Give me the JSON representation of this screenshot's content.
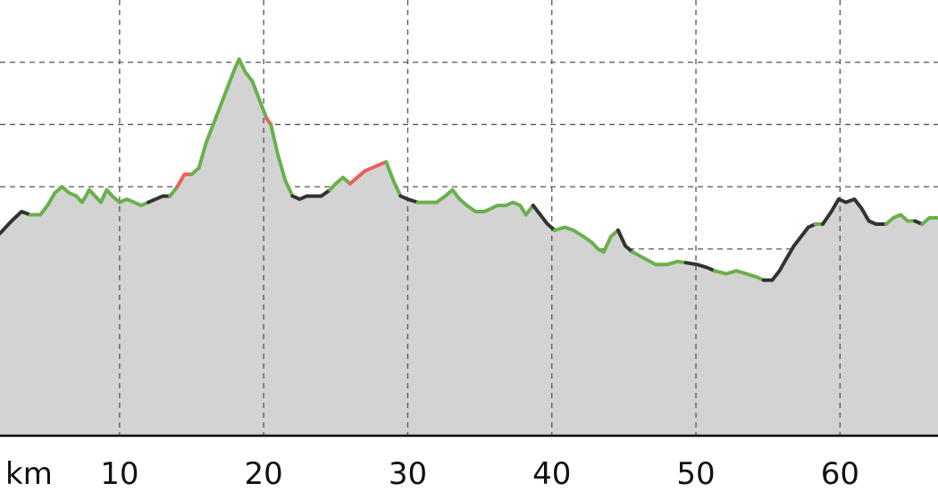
{
  "chart_data": {
    "type": "area",
    "x_unit_label": "km",
    "x_ticks": [
      10,
      20,
      30,
      40,
      50,
      60
    ],
    "xlim": [
      1.7,
      66.8
    ],
    "ylim": [
      0,
      7
    ],
    "y_gridlines": [
      1,
      2,
      3,
      4,
      5,
      6
    ],
    "x_gridlines": [
      10,
      20,
      30,
      40,
      50,
      60
    ],
    "grid": true,
    "legend": "none",
    "colors": {
      "fill": "#d3d3d3",
      "grid": "#555555",
      "axis": "#000000",
      "flat": "#333333",
      "moderate": "#6ab04c",
      "steep": "#e8605c"
    },
    "series": [
      {
        "segments": [
          {
            "grade": "flat",
            "points": [
              [
                1.7,
                3.25
              ],
              [
                2.5,
                3.45
              ],
              [
                3.2,
                3.6
              ],
              [
                3.8,
                3.55
              ]
            ]
          },
          {
            "grade": "moderate",
            "points": [
              [
                3.8,
                3.55
              ],
              [
                4.5,
                3.55
              ],
              [
                5.0,
                3.7
              ],
              [
                5.5,
                3.9
              ],
              [
                6.0,
                4.0
              ],
              [
                6.5,
                3.9
              ],
              [
                7.0,
                3.85
              ],
              [
                7.4,
                3.75
              ],
              [
                7.9,
                3.95
              ],
              [
                8.3,
                3.85
              ],
              [
                8.7,
                3.75
              ],
              [
                9.1,
                3.95
              ],
              [
                9.5,
                3.85
              ],
              [
                10.0,
                3.75
              ],
              [
                10.5,
                3.8
              ],
              [
                11.0,
                3.75
              ],
              [
                11.5,
                3.7
              ],
              [
                12.0,
                3.75
              ]
            ]
          },
          {
            "grade": "flat",
            "points": [
              [
                12.0,
                3.75
              ],
              [
                12.5,
                3.8
              ],
              [
                13.0,
                3.85
              ],
              [
                13.5,
                3.85
              ]
            ]
          },
          {
            "grade": "moderate",
            "points": [
              [
                13.5,
                3.85
              ],
              [
                14.0,
                4.0
              ]
            ]
          },
          {
            "grade": "steep",
            "points": [
              [
                14.0,
                4.0
              ],
              [
                14.5,
                4.2
              ],
              [
                15.0,
                4.2
              ]
            ]
          },
          {
            "grade": "moderate",
            "points": [
              [
                15.0,
                4.2
              ],
              [
                15.5,
                4.3
              ],
              [
                16.0,
                4.7
              ],
              [
                16.5,
                5.0
              ],
              [
                17.0,
                5.3
              ],
              [
                17.5,
                5.6
              ],
              [
                18.0,
                5.9
              ],
              [
                18.3,
                6.05
              ],
              [
                18.7,
                5.85
              ],
              [
                19.2,
                5.7
              ],
              [
                19.7,
                5.4
              ],
              [
                20.2,
                5.1
              ]
            ]
          },
          {
            "grade": "steep",
            "points": [
              [
                20.2,
                5.1
              ],
              [
                20.5,
                5.0
              ]
            ]
          },
          {
            "grade": "moderate",
            "points": [
              [
                20.5,
                5.0
              ],
              [
                21.0,
                4.5
              ],
              [
                21.5,
                4.1
              ],
              [
                22.0,
                3.85
              ]
            ]
          },
          {
            "grade": "flat",
            "points": [
              [
                22.0,
                3.85
              ],
              [
                22.5,
                3.8
              ],
              [
                23.0,
                3.85
              ],
              [
                23.5,
                3.85
              ],
              [
                24.0,
                3.85
              ],
              [
                24.6,
                3.95
              ]
            ]
          },
          {
            "grade": "moderate",
            "points": [
              [
                24.6,
                3.95
              ],
              [
                25.0,
                4.05
              ],
              [
                25.5,
                4.15
              ],
              [
                26.0,
                4.05
              ]
            ]
          },
          {
            "grade": "steep",
            "points": [
              [
                26.0,
                4.05
              ],
              [
                26.5,
                4.15
              ],
              [
                27.0,
                4.25
              ],
              [
                27.5,
                4.3
              ],
              [
                28.0,
                4.35
              ],
              [
                28.5,
                4.4
              ]
            ]
          },
          {
            "grade": "moderate",
            "points": [
              [
                28.5,
                4.4
              ],
              [
                29.0,
                4.1
              ],
              [
                29.5,
                3.85
              ]
            ]
          },
          {
            "grade": "flat",
            "points": [
              [
                29.5,
                3.85
              ],
              [
                30.0,
                3.8
              ],
              [
                30.7,
                3.75
              ]
            ]
          },
          {
            "grade": "moderate",
            "points": [
              [
                30.7,
                3.75
              ],
              [
                31.5,
                3.75
              ],
              [
                32.0,
                3.75
              ],
              [
                32.6,
                3.85
              ],
              [
                33.1,
                3.95
              ],
              [
                33.6,
                3.8
              ],
              [
                34.1,
                3.7
              ],
              [
                34.7,
                3.6
              ],
              [
                35.3,
                3.6
              ],
              [
                35.8,
                3.65
              ],
              [
                36.2,
                3.7
              ],
              [
                36.8,
                3.7
              ],
              [
                37.3,
                3.75
              ],
              [
                37.8,
                3.7
              ],
              [
                38.2,
                3.55
              ],
              [
                38.7,
                3.7
              ]
            ]
          },
          {
            "grade": "flat",
            "points": [
              [
                38.7,
                3.7
              ],
              [
                39.2,
                3.55
              ],
              [
                39.7,
                3.4
              ],
              [
                40.2,
                3.3
              ]
            ]
          },
          {
            "grade": "moderate",
            "points": [
              [
                40.2,
                3.3
              ],
              [
                40.9,
                3.35
              ],
              [
                41.5,
                3.3
              ],
              [
                42.2,
                3.2
              ],
              [
                42.8,
                3.1
              ],
              [
                43.2,
                3.0
              ],
              [
                43.6,
                2.95
              ],
              [
                44.1,
                3.2
              ],
              [
                44.6,
                3.3
              ]
            ]
          },
          {
            "grade": "flat",
            "points": [
              [
                44.6,
                3.3
              ],
              [
                45.1,
                3.05
              ],
              [
                45.6,
                2.95
              ]
            ]
          },
          {
            "grade": "moderate",
            "points": [
              [
                45.6,
                2.95
              ],
              [
                46.4,
                2.85
              ],
              [
                47.2,
                2.75
              ],
              [
                48.0,
                2.75
              ],
              [
                48.7,
                2.8
              ],
              [
                49.3,
                2.78
              ]
            ]
          },
          {
            "grade": "flat",
            "points": [
              [
                49.3,
                2.78
              ],
              [
                50.1,
                2.75
              ],
              [
                50.8,
                2.7
              ],
              [
                51.3,
                2.65
              ]
            ]
          },
          {
            "grade": "moderate",
            "points": [
              [
                51.3,
                2.65
              ],
              [
                52.1,
                2.6
              ],
              [
                52.8,
                2.65
              ],
              [
                53.5,
                2.6
              ],
              [
                54.2,
                2.55
              ],
              [
                54.7,
                2.5
              ]
            ]
          },
          {
            "grade": "flat",
            "points": [
              [
                54.7,
                2.5
              ],
              [
                55.3,
                2.5
              ],
              [
                55.8,
                2.65
              ],
              [
                56.3,
                2.85
              ],
              [
                56.8,
                3.05
              ],
              [
                57.3,
                3.2
              ],
              [
                57.8,
                3.35
              ],
              [
                58.3,
                3.4
              ]
            ]
          },
          {
            "grade": "moderate",
            "points": [
              [
                58.3,
                3.4
              ],
              [
                58.8,
                3.4
              ]
            ]
          },
          {
            "grade": "flat",
            "points": [
              [
                58.8,
                3.4
              ],
              [
                59.4,
                3.6
              ],
              [
                59.9,
                3.8
              ],
              [
                60.4,
                3.75
              ],
              [
                61.0,
                3.8
              ],
              [
                61.5,
                3.65
              ],
              [
                62.0,
                3.45
              ],
              [
                62.5,
                3.4
              ],
              [
                63.2,
                3.4
              ]
            ]
          },
          {
            "grade": "moderate",
            "points": [
              [
                63.2,
                3.4
              ],
              [
                63.7,
                3.5
              ],
              [
                64.2,
                3.55
              ],
              [
                64.7,
                3.45
              ],
              [
                65.2,
                3.45
              ]
            ]
          },
          {
            "grade": "flat",
            "points": [
              [
                65.2,
                3.45
              ],
              [
                65.7,
                3.4
              ]
            ]
          },
          {
            "grade": "moderate",
            "points": [
              [
                65.7,
                3.4
              ],
              [
                66.2,
                3.5
              ],
              [
                66.8,
                3.5
              ]
            ]
          }
        ]
      }
    ]
  }
}
